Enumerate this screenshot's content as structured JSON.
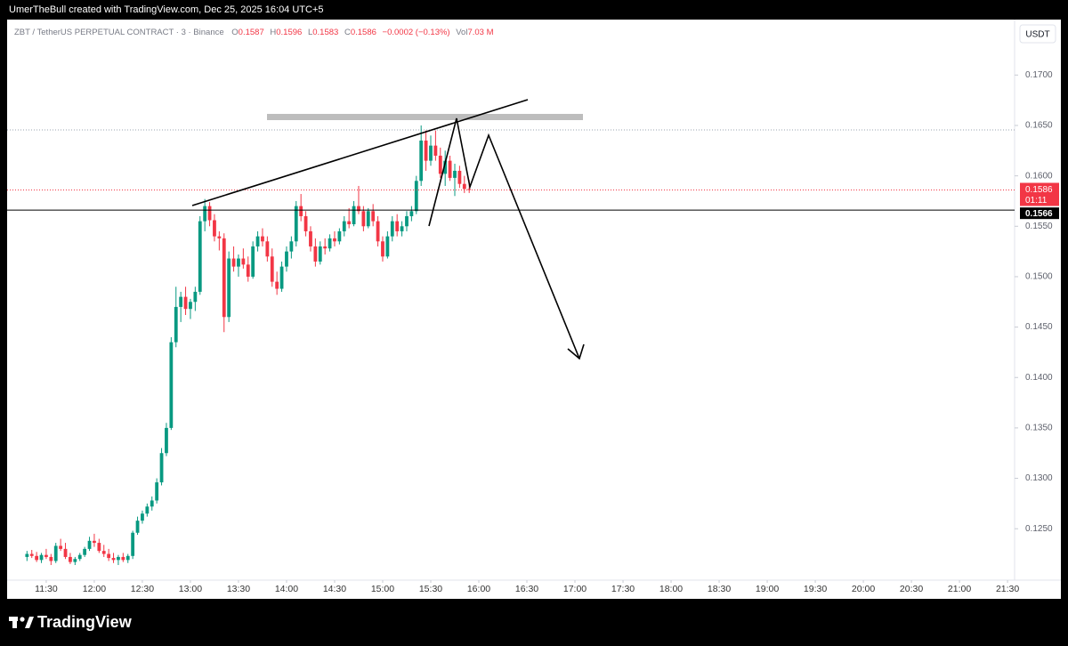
{
  "chart_data": {
    "type": "candlestick",
    "header": "UmerTheBull created with TradingView.com, Dec 25, 2025 16:04 UTC+5",
    "title": "ZBT / TetherUS PERPETUAL CONTRACT · 3 · Binance",
    "legend": {
      "o_label": "O",
      "open": 0.1587,
      "h_label": "H",
      "high": 0.1596,
      "l_label": "L",
      "low": 0.1583,
      "c_label": "C",
      "close": 0.1586,
      "change": "−0.0002 (−0.13%)",
      "vol_label": "Vol",
      "volume": "7.03 M"
    },
    "currency": "USDT",
    "footer": "TradingView",
    "up_color": "#089981",
    "down_color": "#f23645",
    "last_price": 0.1586,
    "countdown": "01:11",
    "level": 0.1566,
    "x": [
      678,
      681,
      684,
      687,
      690,
      693,
      696,
      699,
      702,
      705,
      708,
      711,
      714,
      717,
      720,
      723,
      726,
      729,
      732,
      735,
      738,
      741,
      744,
      747,
      750,
      753,
      756,
      759,
      762,
      765,
      768,
      771,
      774,
      777,
      780,
      783,
      786,
      789,
      792,
      795,
      798,
      801,
      804,
      807,
      810,
      813,
      816,
      819,
      822,
      825,
      828,
      831,
      834,
      837,
      840,
      843,
      846,
      849,
      852,
      855,
      858,
      861,
      864,
      867,
      870,
      873,
      876,
      879,
      882,
      885,
      888,
      891,
      894,
      897,
      900,
      903,
      906,
      909,
      912,
      915,
      918,
      921,
      924,
      927,
      930,
      933,
      936,
      939,
      942,
      945,
      948,
      951,
      954
    ],
    "open": [
      0.1222,
      0.1225,
      0.1223,
      0.1219,
      0.1224,
      0.1222,
      0.1218,
      0.1233,
      0.123,
      0.1222,
      0.1217,
      0.122,
      0.1224,
      0.123,
      0.1238,
      0.1236,
      0.1228,
      0.1225,
      0.1221,
      0.1219,
      0.1222,
      0.1219,
      0.1223,
      0.1246,
      0.1258,
      0.1265,
      0.1272,
      0.1278,
      0.1296,
      0.1325,
      0.135,
      0.1435,
      0.147,
      0.148,
      0.1468,
      0.1475,
      0.1485,
      0.1555,
      0.157,
      0.1556,
      0.154,
      0.1538,
      0.146,
      0.1518,
      0.151,
      0.1518,
      0.1512,
      0.15,
      0.153,
      0.154,
      0.1535,
      0.152,
      0.1495,
      0.1488,
      0.151,
      0.1525,
      0.1535,
      0.157,
      0.156,
      0.1545,
      0.153,
      0.1515,
      0.153,
      0.1528,
      0.1538,
      0.1535,
      0.1545,
      0.1555,
      0.1552,
      0.157,
      0.1565,
      0.155,
      0.1565,
      0.1555,
      0.1535,
      0.152,
      0.154,
      0.1555,
      0.1545,
      0.155,
      0.156,
      0.1565,
      0.1595,
      0.1635,
      0.1615,
      0.163,
      0.162,
      0.1602,
      0.1615,
      0.1598,
      0.1605,
      0.1592,
      0.1587
    ],
    "high": [
      0.1228,
      0.1229,
      0.1227,
      0.1226,
      0.123,
      0.1225,
      0.1236,
      0.124,
      0.1236,
      0.1226,
      0.1222,
      0.1226,
      0.1232,
      0.1242,
      0.1245,
      0.124,
      0.1234,
      0.123,
      0.1226,
      0.1224,
      0.1226,
      0.1225,
      0.1248,
      0.1262,
      0.1268,
      0.1275,
      0.1282,
      0.13,
      0.133,
      0.1355,
      0.144,
      0.149,
      0.1485,
      0.149,
      0.1478,
      0.149,
      0.156,
      0.1577,
      0.1574,
      0.1562,
      0.1545,
      0.1543,
      0.1525,
      0.153,
      0.1522,
      0.1528,
      0.152,
      0.1535,
      0.1545,
      0.1548,
      0.154,
      0.1528,
      0.1505,
      0.1515,
      0.153,
      0.154,
      0.1575,
      0.1582,
      0.1565,
      0.155,
      0.1538,
      0.1535,
      0.1538,
      0.1542,
      0.1545,
      0.1548,
      0.156,
      0.1568,
      0.1575,
      0.159,
      0.157,
      0.1568,
      0.1572,
      0.156,
      0.154,
      0.1545,
      0.156,
      0.1562,
      0.1555,
      0.1565,
      0.157,
      0.16,
      0.165,
      0.1645,
      0.164,
      0.1645,
      0.1628,
      0.1625,
      0.162,
      0.1612,
      0.161,
      0.16,
      0.1596
    ],
    "low": [
      0.1218,
      0.1221,
      0.1217,
      0.1216,
      0.122,
      0.1214,
      0.1216,
      0.1228,
      0.122,
      0.1215,
      0.1214,
      0.1218,
      0.1222,
      0.1228,
      0.1232,
      0.1226,
      0.1222,
      0.1218,
      0.1216,
      0.1214,
      0.1217,
      0.1216,
      0.122,
      0.1244,
      0.1255,
      0.1262,
      0.1268,
      0.1275,
      0.1293,
      0.1322,
      0.1348,
      0.143,
      0.1455,
      0.1462,
      0.1458,
      0.1466,
      0.1482,
      0.1545,
      0.155,
      0.1535,
      0.1526,
      0.1445,
      0.1455,
      0.1505,
      0.15,
      0.1508,
      0.1495,
      0.1498,
      0.1525,
      0.153,
      0.1515,
      0.149,
      0.1482,
      0.1485,
      0.1505,
      0.1518,
      0.153,
      0.1555,
      0.154,
      0.1525,
      0.151,
      0.1512,
      0.1522,
      0.1525,
      0.153,
      0.1532,
      0.154,
      0.1548,
      0.155,
      0.1562,
      0.1545,
      0.1548,
      0.155,
      0.153,
      0.1515,
      0.1518,
      0.1535,
      0.154,
      0.154,
      0.1545,
      0.1555,
      0.1562,
      0.159,
      0.1605,
      0.161,
      0.1615,
      0.1598,
      0.159,
      0.1595,
      0.158,
      0.1588,
      0.1583,
      0.1583
    ],
    "close": [
      0.1225,
      0.1223,
      0.1219,
      0.1224,
      0.1222,
      0.1218,
      0.1233,
      0.123,
      0.1222,
      0.1217,
      0.122,
      0.1224,
      0.123,
      0.1238,
      0.1236,
      0.1228,
      0.1225,
      0.1221,
      0.1219,
      0.1222,
      0.1219,
      0.1223,
      0.1246,
      0.1258,
      0.1265,
      0.1272,
      0.1278,
      0.1296,
      0.1325,
      0.135,
      0.1435,
      0.147,
      0.148,
      0.1468,
      0.1475,
      0.1485,
      0.1555,
      0.157,
      0.1556,
      0.154,
      0.1538,
      0.146,
      0.1518,
      0.151,
      0.1518,
      0.1512,
      0.15,
      0.153,
      0.154,
      0.1535,
      0.152,
      0.1495,
      0.1488,
      0.151,
      0.1525,
      0.1535,
      0.157,
      0.156,
      0.1545,
      0.153,
      0.1515,
      0.153,
      0.1528,
      0.1538,
      0.1535,
      0.1545,
      0.1555,
      0.1552,
      0.157,
      0.1565,
      0.155,
      0.1565,
      0.1555,
      0.1535,
      0.152,
      0.154,
      0.1555,
      0.1545,
      0.155,
      0.156,
      0.1565,
      0.1595,
      0.1635,
      0.1615,
      0.163,
      0.162,
      0.1602,
      0.1615,
      0.1598,
      0.1605,
      0.1592,
      0.1587,
      0.1586
    ],
    "xlim": [
      665.6,
      1294.4
    ],
    "ylim": [
      0.1199,
      0.1755
    ],
    "xticks": [
      {
        "value": 690,
        "label": "11:30"
      },
      {
        "value": 720,
        "label": "12:00"
      },
      {
        "value": 750,
        "label": "12:30"
      },
      {
        "value": 780,
        "label": "13:00"
      },
      {
        "value": 810,
        "label": "13:30"
      },
      {
        "value": 840,
        "label": "14:00"
      },
      {
        "value": 870,
        "label": "14:30"
      },
      {
        "value": 900,
        "label": "15:00"
      },
      {
        "value": 930,
        "label": "15:30"
      },
      {
        "value": 960,
        "label": "16:00"
      },
      {
        "value": 990,
        "label": "16:30"
      },
      {
        "value": 1020,
        "label": "17:00"
      },
      {
        "value": 1050,
        "label": "17:30"
      },
      {
        "value": 1080,
        "label": "18:00"
      },
      {
        "value": 1110,
        "label": "18:30"
      },
      {
        "value": 1140,
        "label": "19:00"
      },
      {
        "value": 1170,
        "label": "19:30"
      },
      {
        "value": 1200,
        "label": "20:00"
      },
      {
        "value": 1230,
        "label": "20:30"
      },
      {
        "value": 1260,
        "label": "21:00"
      },
      {
        "value": 1290,
        "label": "21:30"
      }
    ],
    "yticks": [
      {
        "value": 0.125,
        "label": "0.1250"
      },
      {
        "value": 0.13,
        "label": "0.1300"
      },
      {
        "value": 0.135,
        "label": "0.1350"
      },
      {
        "value": 0.14,
        "label": "0.1400"
      },
      {
        "value": 0.145,
        "label": "0.1450"
      },
      {
        "value": 0.15,
        "label": "0.1500"
      },
      {
        "value": 0.155,
        "label": "0.1550"
      },
      {
        "value": 0.16,
        "label": "0.1600"
      },
      {
        "value": 0.165,
        "label": "0.1650"
      },
      {
        "value": 0.17,
        "label": "0.1700"
      }
    ]
  }
}
